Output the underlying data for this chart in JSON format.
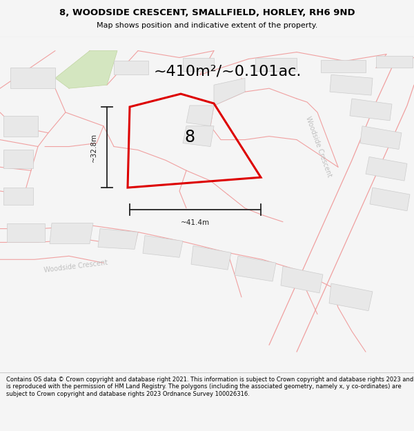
{
  "title_line1": "8, WOODSIDE CRESCENT, SMALLFIELD, HORLEY, RH6 9ND",
  "title_line2": "Map shows position and indicative extent of the property.",
  "area_text": "~410m²/~0.101ac.",
  "label_8": "8",
  "dim_height": "~32.8m",
  "dim_width": "~41.4m",
  "road_label_right": "Woodside Crescent",
  "road_label_bottom": "Woodside Crescent",
  "footer": "Contains OS data © Crown copyright and database right 2021. This information is subject to Crown copyright and database rights 2023 and is reproduced with the permission of HM Land Registry. The polygons (including the associated geometry, namely x, y co-ordinates) are subject to Crown copyright and database rights 2023 Ordnance Survey 100026316.",
  "bg_color": "#f5f5f5",
  "map_bg": "#ffffff",
  "bld_fc": "#e8e8e8",
  "bld_ec": "#cccccc",
  "road_color": "#f0a0a0",
  "plot_color": "#dd0000",
  "text_gray": "#c0c0c0",
  "dim_color": "#222222",
  "title_fontsize": 9.5,
  "subtitle_fontsize": 8.0,
  "area_fontsize": 16,
  "label_fontsize": 17,
  "dim_fontsize": 7.5,
  "road_lbl_fontsize": 7.0,
  "footer_fontsize": 6.0
}
